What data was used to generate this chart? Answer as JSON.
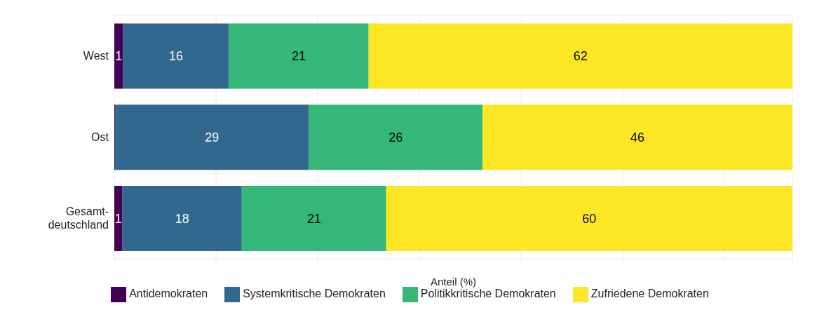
{
  "chart_data": {
    "type": "bar",
    "orientation": "horizontal",
    "stacked": true,
    "categories": [
      "West",
      "Ost",
      "Gesamt-deutschland"
    ],
    "series": [
      {
        "name": "Antidemokraten",
        "color": "#440154",
        "values": [
          1.3,
          0.1,
          1.2
        ],
        "value_labels": [
          "1",
          null,
          "1"
        ]
      },
      {
        "name": "Systemkritische Demokraten",
        "color": "#31688e",
        "values": [
          15.6,
          28.6,
          17.6
        ],
        "value_labels": [
          "16",
          "29",
          "18"
        ]
      },
      {
        "name": "Politikkritische Demokraten",
        "color": "#35b779",
        "values": [
          20.6,
          25.6,
          21.3
        ],
        "value_labels": [
          "21",
          "26",
          "21"
        ]
      },
      {
        "name": "Zufriedene Demokraten",
        "color": "#fde725",
        "values": [
          62.5,
          45.7,
          59.9
        ],
        "value_labels": [
          "62",
          "46",
          "60"
        ]
      }
    ],
    "xlabel": "Anteil (%)",
    "xlim": [
      0,
      100
    ],
    "tick_labels": "y",
    "grid": true,
    "legend": "bottom"
  }
}
